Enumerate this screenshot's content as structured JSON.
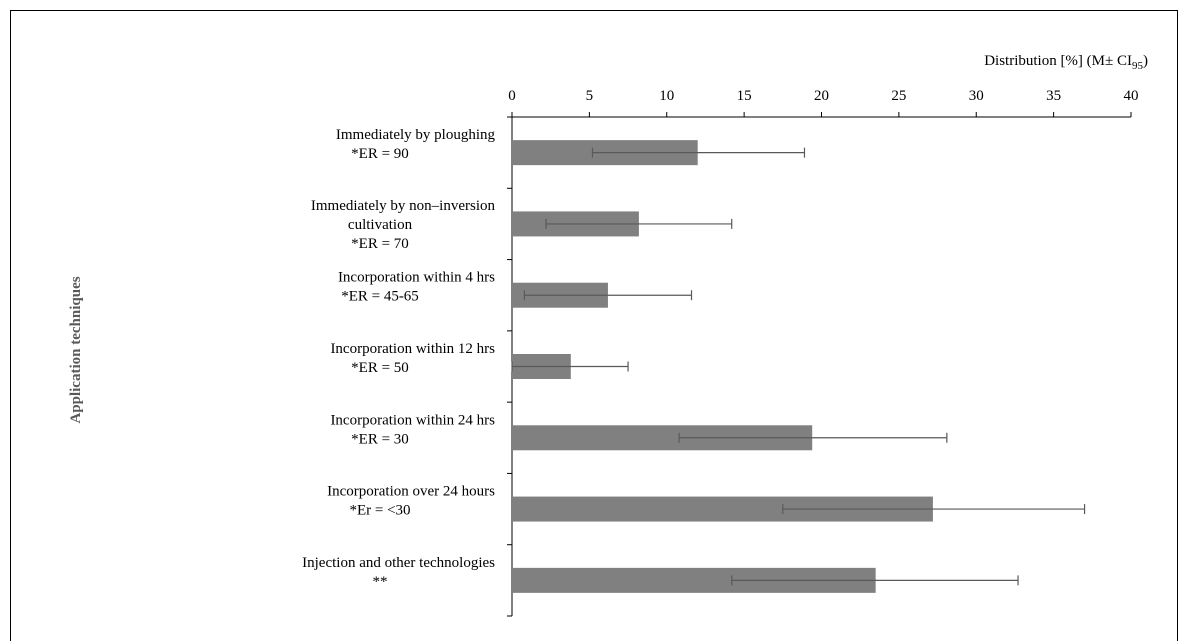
{
  "chart_data": {
    "type": "bar",
    "orientation": "horizontal",
    "xlabel": "Distribution [%] (M± CI",
    "xlabel_subscript": "95",
    "xlabel_suffix": ")",
    "ylabel": "Application techniques",
    "xlim": [
      0,
      40
    ],
    "xticks": [
      "0",
      "5",
      "10",
      "15",
      "20",
      "25",
      "30",
      "35",
      "40"
    ],
    "x_axis_position": "top",
    "grid": false,
    "categories": [
      {
        "lines": [
          "Immediately by ploughing",
          "*ER = 90"
        ]
      },
      {
        "lines": [
          "Immediately by non–inversion",
          "cultivation",
          "*ER = 70"
        ]
      },
      {
        "lines": [
          "Incorporation within 4 hrs",
          "*ER = 45-65"
        ]
      },
      {
        "lines": [
          "Incorporation within 12 hrs",
          "*ER = 50"
        ]
      },
      {
        "lines": [
          "Incorporation within 24 hrs",
          "*ER = 30"
        ]
      },
      {
        "lines": [
          "Incorporation over 24 hours",
          "*Er = <30"
        ]
      },
      {
        "lines": [
          "Injection and other technologies",
          "**"
        ]
      }
    ],
    "values": [
      12.0,
      8.2,
      6.2,
      3.8,
      19.4,
      27.2,
      23.5
    ],
    "ci_low": [
      5.2,
      2.2,
      0.8,
      0.0,
      10.8,
      17.5,
      14.2
    ],
    "ci_high": [
      18.9,
      14.2,
      11.6,
      7.5,
      28.1,
      37.0,
      32.7
    ],
    "bar_color": "#808080",
    "error_color": "#595959"
  }
}
